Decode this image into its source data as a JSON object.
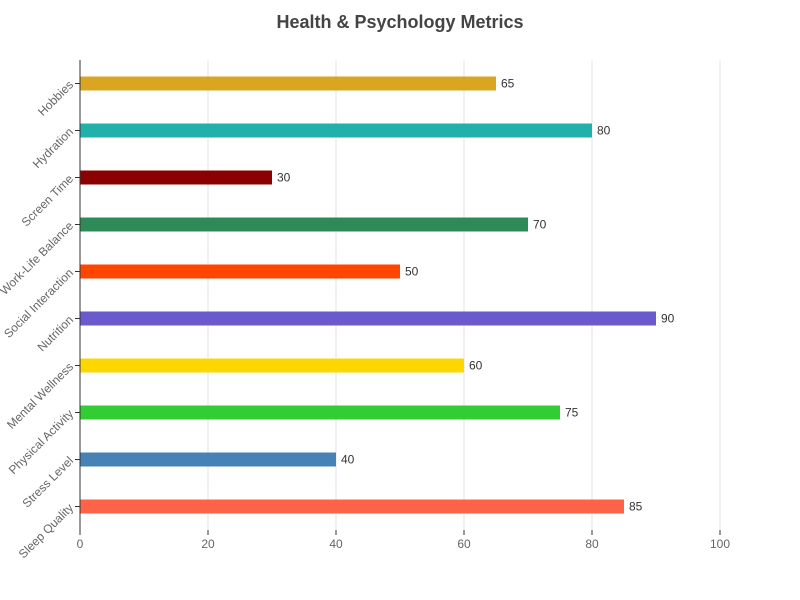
{
  "chart_data": {
    "type": "bar",
    "orientation": "horizontal",
    "title": "Health & Psychology Metrics",
    "xlabel": "",
    "ylabel": "",
    "categories": [
      "Sleep Quality",
      "Stress Level",
      "Physical Activity",
      "Mental Wellness",
      "Nutrition",
      "Social Interaction",
      "Work-Life Balance",
      "Screen Time",
      "Hydration",
      "Hobbies"
    ],
    "values": [
      85,
      40,
      75,
      60,
      90,
      50,
      70,
      30,
      80,
      65
    ],
    "colors": [
      "#FF6347",
      "#4682B4",
      "#32CD32",
      "#FFD700",
      "#6A5ACD",
      "#FF4500",
      "#2E8B57",
      "#8B0000",
      "#20B2AA",
      "#DAA520"
    ],
    "xlim": [
      0,
      100
    ],
    "x_ticks": [
      "0",
      "20",
      "40",
      "60",
      "80",
      "100"
    ],
    "grid": "vertical",
    "legend": "none"
  }
}
